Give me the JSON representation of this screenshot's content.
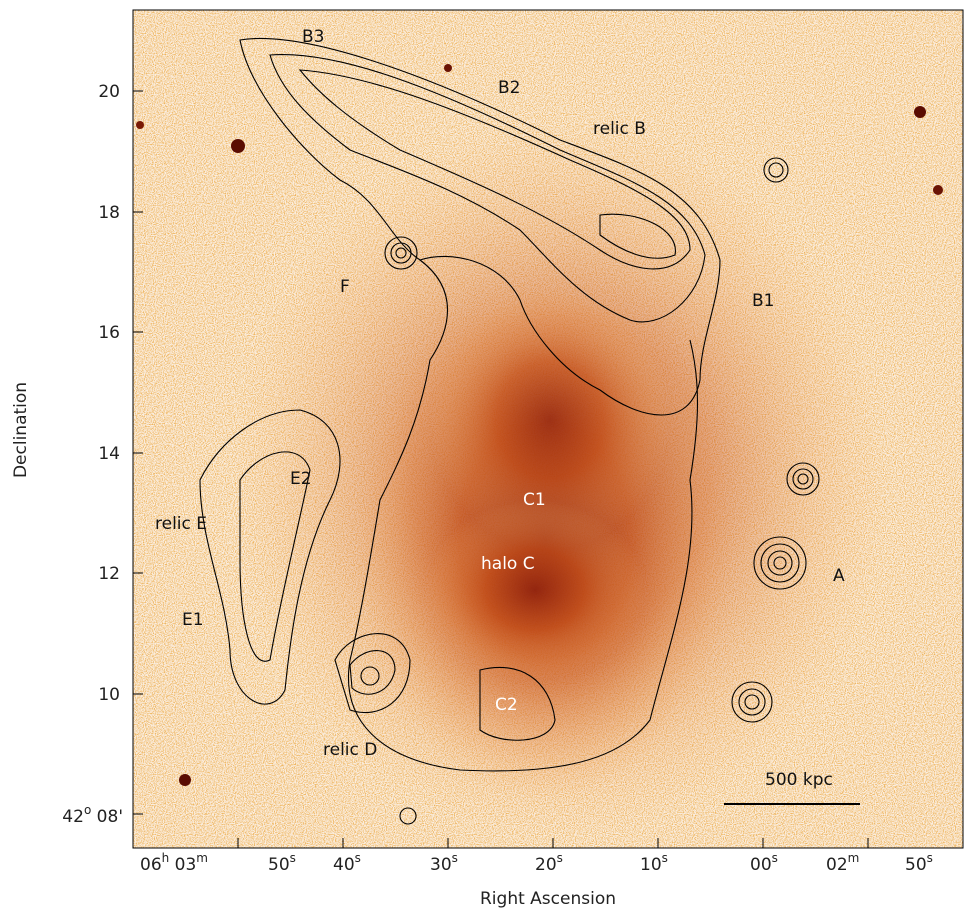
{
  "axes": {
    "x_label": "Right Ascension",
    "y_label": "Declination",
    "y_ticks": [
      [
        "20"
      ],
      [
        "18"
      ],
      [
        "16"
      ],
      [
        "14"
      ],
      [
        "12"
      ],
      [
        "10"
      ],
      [
        "42",
        "o",
        " 08'"
      ]
    ],
    "x_ticks": [
      [
        "06",
        "h",
        " 03",
        "m"
      ],
      [
        "50",
        "s"
      ],
      [
        "40",
        "s"
      ],
      [
        "30",
        "s"
      ],
      [
        "20",
        "s"
      ],
      [
        "10",
        "s"
      ],
      [
        "00",
        "s"
      ],
      [
        "02",
        "m"
      ],
      [
        "50",
        "s"
      ]
    ]
  },
  "annotations": [
    "B3",
    "B2",
    "relic B",
    "B1",
    "F",
    "E2",
    "relic E",
    "E1",
    "C1",
    "halo C",
    "C2",
    "relic D",
    "A"
  ],
  "scale_bar": "500 kpc"
}
